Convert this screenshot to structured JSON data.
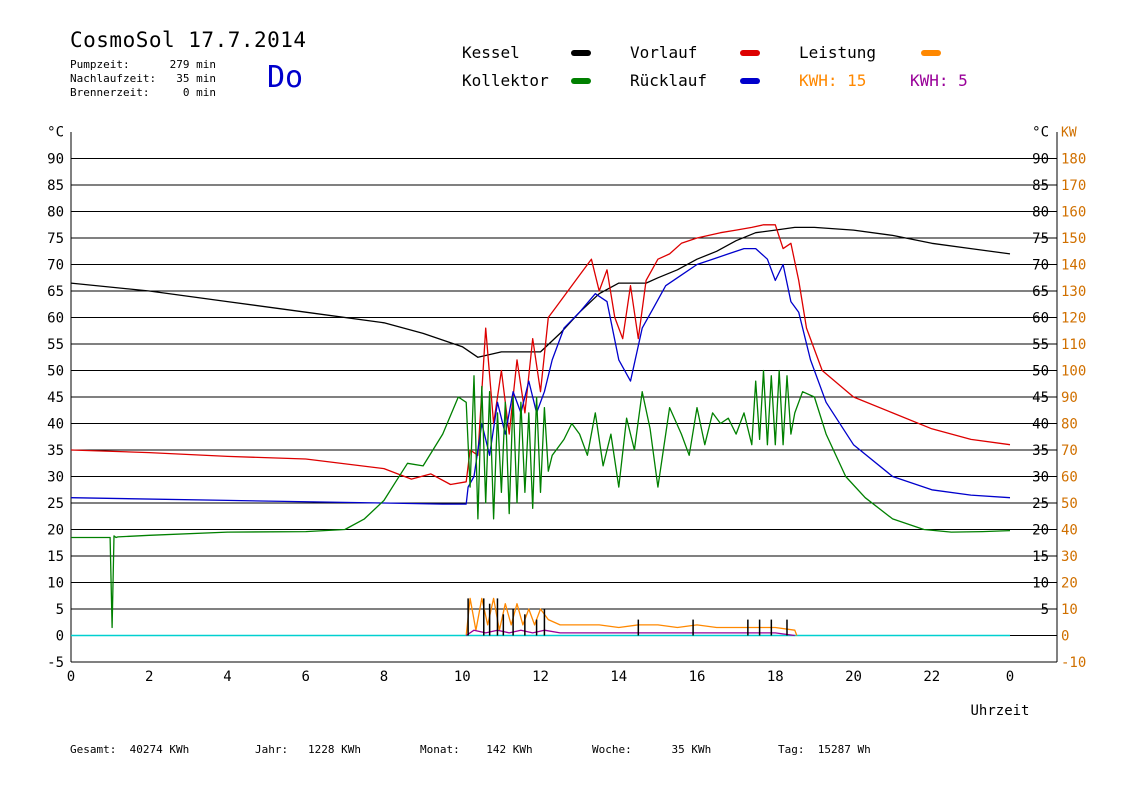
{
  "header": {
    "title": "CosmoSol 17.7.2014",
    "day": "Do",
    "info": [
      {
        "label": "Pumpzeit:",
        "value": "279 min"
      },
      {
        "label": "Nachlaufzeit:",
        "value": "35 min"
      },
      {
        "label": "Brennerzeit:",
        "value": "0 min"
      }
    ]
  },
  "legend": {
    "kessel": "Kessel",
    "kollektor": "Kollektor",
    "vorlauf": "Vorlauf",
    "ruecklauf": "Rücklauf",
    "leistung": "Leistung",
    "kwh1_label": "KWH:",
    "kwh1_value": "15",
    "kwh2_label": "KWH:",
    "kwh2_value": "5"
  },
  "colors": {
    "kessel": "#000000",
    "kollektor": "#008000",
    "vorlauf": "#dd0000",
    "ruecklauf": "#0000cc",
    "leistung": "#ff8800",
    "kwh2": "#990099",
    "baseline": "#00d0d0"
  },
  "footer": {
    "gesamt": "Gesamt:  40274 KWh",
    "jahr": "Jahr:   1228 KWh",
    "monat": "Monat:    142 KWh",
    "woche": "Woche:      35 KWh",
    "tag": "Tag:  15287 Wh"
  },
  "chart_data": {
    "type": "line",
    "xlabel": "Uhrzeit",
    "ylabel_left": "°C",
    "ylabel_right": "KW",
    "xlim": [
      0,
      24
    ],
    "ylim": [
      -5,
      95
    ],
    "y2lim": [
      -10,
      190
    ],
    "x_ticks": [
      "0",
      "2",
      "4",
      "6",
      "8",
      "10",
      "12",
      "14",
      "16",
      "18",
      "20",
      "22",
      "0"
    ],
    "y_ticks": [
      -5,
      0,
      5,
      10,
      15,
      20,
      25,
      30,
      35,
      40,
      45,
      50,
      55,
      60,
      65,
      70,
      75,
      80,
      85,
      90
    ],
    "y_ticks_right": [
      5,
      10,
      15,
      20,
      25,
      30,
      35,
      40,
      45,
      50,
      55,
      60,
      65,
      70,
      75,
      80,
      85,
      90
    ],
    "y2_ticks": [
      -10,
      0,
      10,
      20,
      30,
      40,
      50,
      60,
      70,
      80,
      90,
      100,
      110,
      120,
      130,
      140,
      150,
      160,
      170,
      180
    ],
    "grid": true,
    "series": [
      {
        "name": "Kessel",
        "key": "kessel",
        "x": [
          0,
          2,
          4,
          6,
          8,
          9,
          10,
          10.4,
          11,
          12,
          12.5,
          13,
          13.5,
          14,
          14.7,
          15,
          15.5,
          16,
          16.5,
          17,
          17.5,
          18,
          18.5,
          19,
          20,
          21,
          22,
          23,
          24
        ],
        "y": [
          66.5,
          65,
          63,
          61,
          59,
          57,
          54.5,
          52.5,
          53.5,
          53.5,
          57,
          61,
          64.5,
          66.5,
          66.5,
          67.5,
          69,
          71,
          72.5,
          74.5,
          76,
          76.5,
          77,
          77,
          76.5,
          75.5,
          74,
          73,
          72
        ]
      },
      {
        "name": "Vorlauf",
        "key": "vorlauf",
        "x": [
          0,
          2,
          4,
          6,
          8,
          8.7,
          9.2,
          9.7,
          10.1,
          10.2,
          10.4,
          10.6,
          10.8,
          11,
          11.2,
          11.4,
          11.6,
          11.8,
          12,
          12.2,
          12.4,
          12.7,
          13,
          13.3,
          13.5,
          13.7,
          13.9,
          14.1,
          14.3,
          14.5,
          14.7,
          15,
          15.3,
          15.6,
          16,
          16.3,
          16.6,
          17,
          17.4,
          17.7,
          18,
          18.2,
          18.4,
          18.6,
          18.8,
          19.2,
          20,
          21,
          22,
          23,
          24
        ],
        "y": [
          35,
          34.5,
          33.8,
          33.3,
          31.5,
          29.5,
          30.5,
          28.5,
          29,
          35,
          34,
          58,
          40,
          50,
          38,
          52,
          42,
          56,
          46,
          60,
          62,
          65,
          68,
          71,
          65,
          69,
          60,
          56,
          66,
          56,
          67,
          71,
          72,
          74,
          75,
          75.5,
          76,
          76.5,
          77,
          77.5,
          77.5,
          73,
          74,
          67,
          58,
          50,
          45,
          42,
          39,
          37,
          36
        ]
      },
      {
        "name": "Rücklauf",
        "key": "ruecklauf",
        "x": [
          0,
          4,
          8,
          9.5,
          10.1,
          10.15,
          10.3,
          10.5,
          10.7,
          10.9,
          11.1,
          11.3,
          11.5,
          11.7,
          11.9,
          12.1,
          12.3,
          12.6,
          13,
          13.4,
          13.7,
          14,
          14.3,
          14.6,
          14.9,
          15.2,
          15.6,
          16,
          16.4,
          16.8,
          17.2,
          17.5,
          17.8,
          18,
          18.2,
          18.4,
          18.6,
          18.9,
          19.3,
          20,
          21,
          22,
          23,
          24
        ],
        "y": [
          26,
          25.5,
          25,
          24.8,
          24.8,
          28,
          30,
          40,
          34,
          44,
          38,
          46,
          42,
          48,
          42,
          46,
          52,
          58,
          61,
          64.5,
          63,
          52,
          48,
          58,
          62,
          66,
          68,
          70,
          71,
          72,
          73,
          73,
          71,
          67,
          70,
          63,
          61,
          52,
          44,
          36,
          30,
          27.5,
          26.5,
          26
        ]
      },
      {
        "name": "Kollektor",
        "key": "kollektor",
        "x": [
          0,
          1,
          1.05,
          1.1,
          1.15,
          1.2,
          2,
          4,
          6,
          7,
          7.5,
          8,
          8.3,
          8.6,
          9,
          9.5,
          9.9,
          10.1,
          10.2,
          10.3,
          10.4,
          10.5,
          10.6,
          10.7,
          10.8,
          10.9,
          11.0,
          11.1,
          11.2,
          11.3,
          11.4,
          11.5,
          11.6,
          11.7,
          11.8,
          11.9,
          12.0,
          12.1,
          12.2,
          12.3,
          12.4,
          12.6,
          12.8,
          13.0,
          13.2,
          13.4,
          13.6,
          13.8,
          14.0,
          14.2,
          14.4,
          14.6,
          14.8,
          15.0,
          15.3,
          15.6,
          15.8,
          16.0,
          16.2,
          16.4,
          16.6,
          16.8,
          17.0,
          17.2,
          17.4,
          17.5,
          17.6,
          17.7,
          17.8,
          17.9,
          18.0,
          18.1,
          18.2,
          18.3,
          18.4,
          18.5,
          18.7,
          19.0,
          19.3,
          19.8,
          20.3,
          21,
          21.8,
          22.5,
          23.3,
          24
        ],
        "y": [
          18.5,
          18.5,
          1.5,
          18.8,
          18.5,
          18.6,
          18.9,
          19.5,
          19.6,
          20,
          22,
          25.5,
          29,
          32.5,
          32,
          38,
          45,
          44,
          28,
          49,
          22,
          47,
          25,
          46,
          22,
          42,
          27,
          44,
          23,
          45,
          25,
          44,
          27,
          42,
          24,
          45,
          27,
          43,
          31,
          34,
          35,
          37,
          40,
          38,
          34,
          42,
          32,
          38,
          28,
          41,
          35,
          46,
          39,
          28,
          43,
          38,
          34,
          43,
          36,
          42,
          40,
          41,
          38,
          42,
          36,
          48,
          37,
          50,
          36,
          49,
          36,
          50,
          36,
          49,
          38,
          42,
          46,
          45,
          38,
          30,
          26,
          22,
          20,
          19.5,
          19.6,
          19.8
        ]
      },
      {
        "name": "Leistung",
        "key": "leistung",
        "x": [
          10.1,
          10.2,
          10.35,
          10.5,
          10.65,
          10.8,
          10.95,
          11.1,
          11.25,
          11.4,
          11.55,
          11.7,
          11.85,
          12,
          12.2,
          12.5,
          13,
          13.5,
          14,
          14.5,
          15,
          15.5,
          16,
          16.5,
          17,
          17.5,
          18,
          18.5,
          18.55
        ],
        "y": [
          0,
          7,
          1,
          7,
          2,
          7,
          1,
          6,
          2,
          6,
          2,
          5,
          2,
          5,
          3,
          2,
          2,
          2,
          1.5,
          2,
          2,
          1.5,
          2,
          1.5,
          1.5,
          1.5,
          1.5,
          1,
          0
        ]
      },
      {
        "name": "KWH",
        "key": "kwh2",
        "x": [
          10.1,
          10.3,
          10.6,
          10.9,
          11.2,
          11.5,
          11.8,
          12.1,
          12.5,
          13,
          13.5,
          14,
          14.5,
          15,
          15.5,
          16,
          16.5,
          17,
          17.5,
          18,
          18.5
        ],
        "y": [
          0,
          1,
          0.5,
          1,
          0.5,
          1,
          0.5,
          1,
          0.5,
          0.5,
          0.5,
          0.5,
          0.5,
          0.5,
          0.5,
          0.5,
          0.5,
          0.5,
          0.5,
          0.5,
          0
        ]
      }
    ],
    "spikes": {
      "key": "kessel",
      "x": [
        10.15,
        10.55,
        10.7,
        10.9,
        11.05,
        11.3,
        11.6,
        11.9,
        12.1,
        14.5,
        15.9,
        17.3,
        17.6,
        17.9,
        18.3
      ],
      "y": [
        7,
        7,
        6,
        7,
        4,
        5,
        4,
        3,
        5,
        3,
        3,
        3,
        3,
        3,
        3
      ]
    },
    "baseline": 0
  }
}
